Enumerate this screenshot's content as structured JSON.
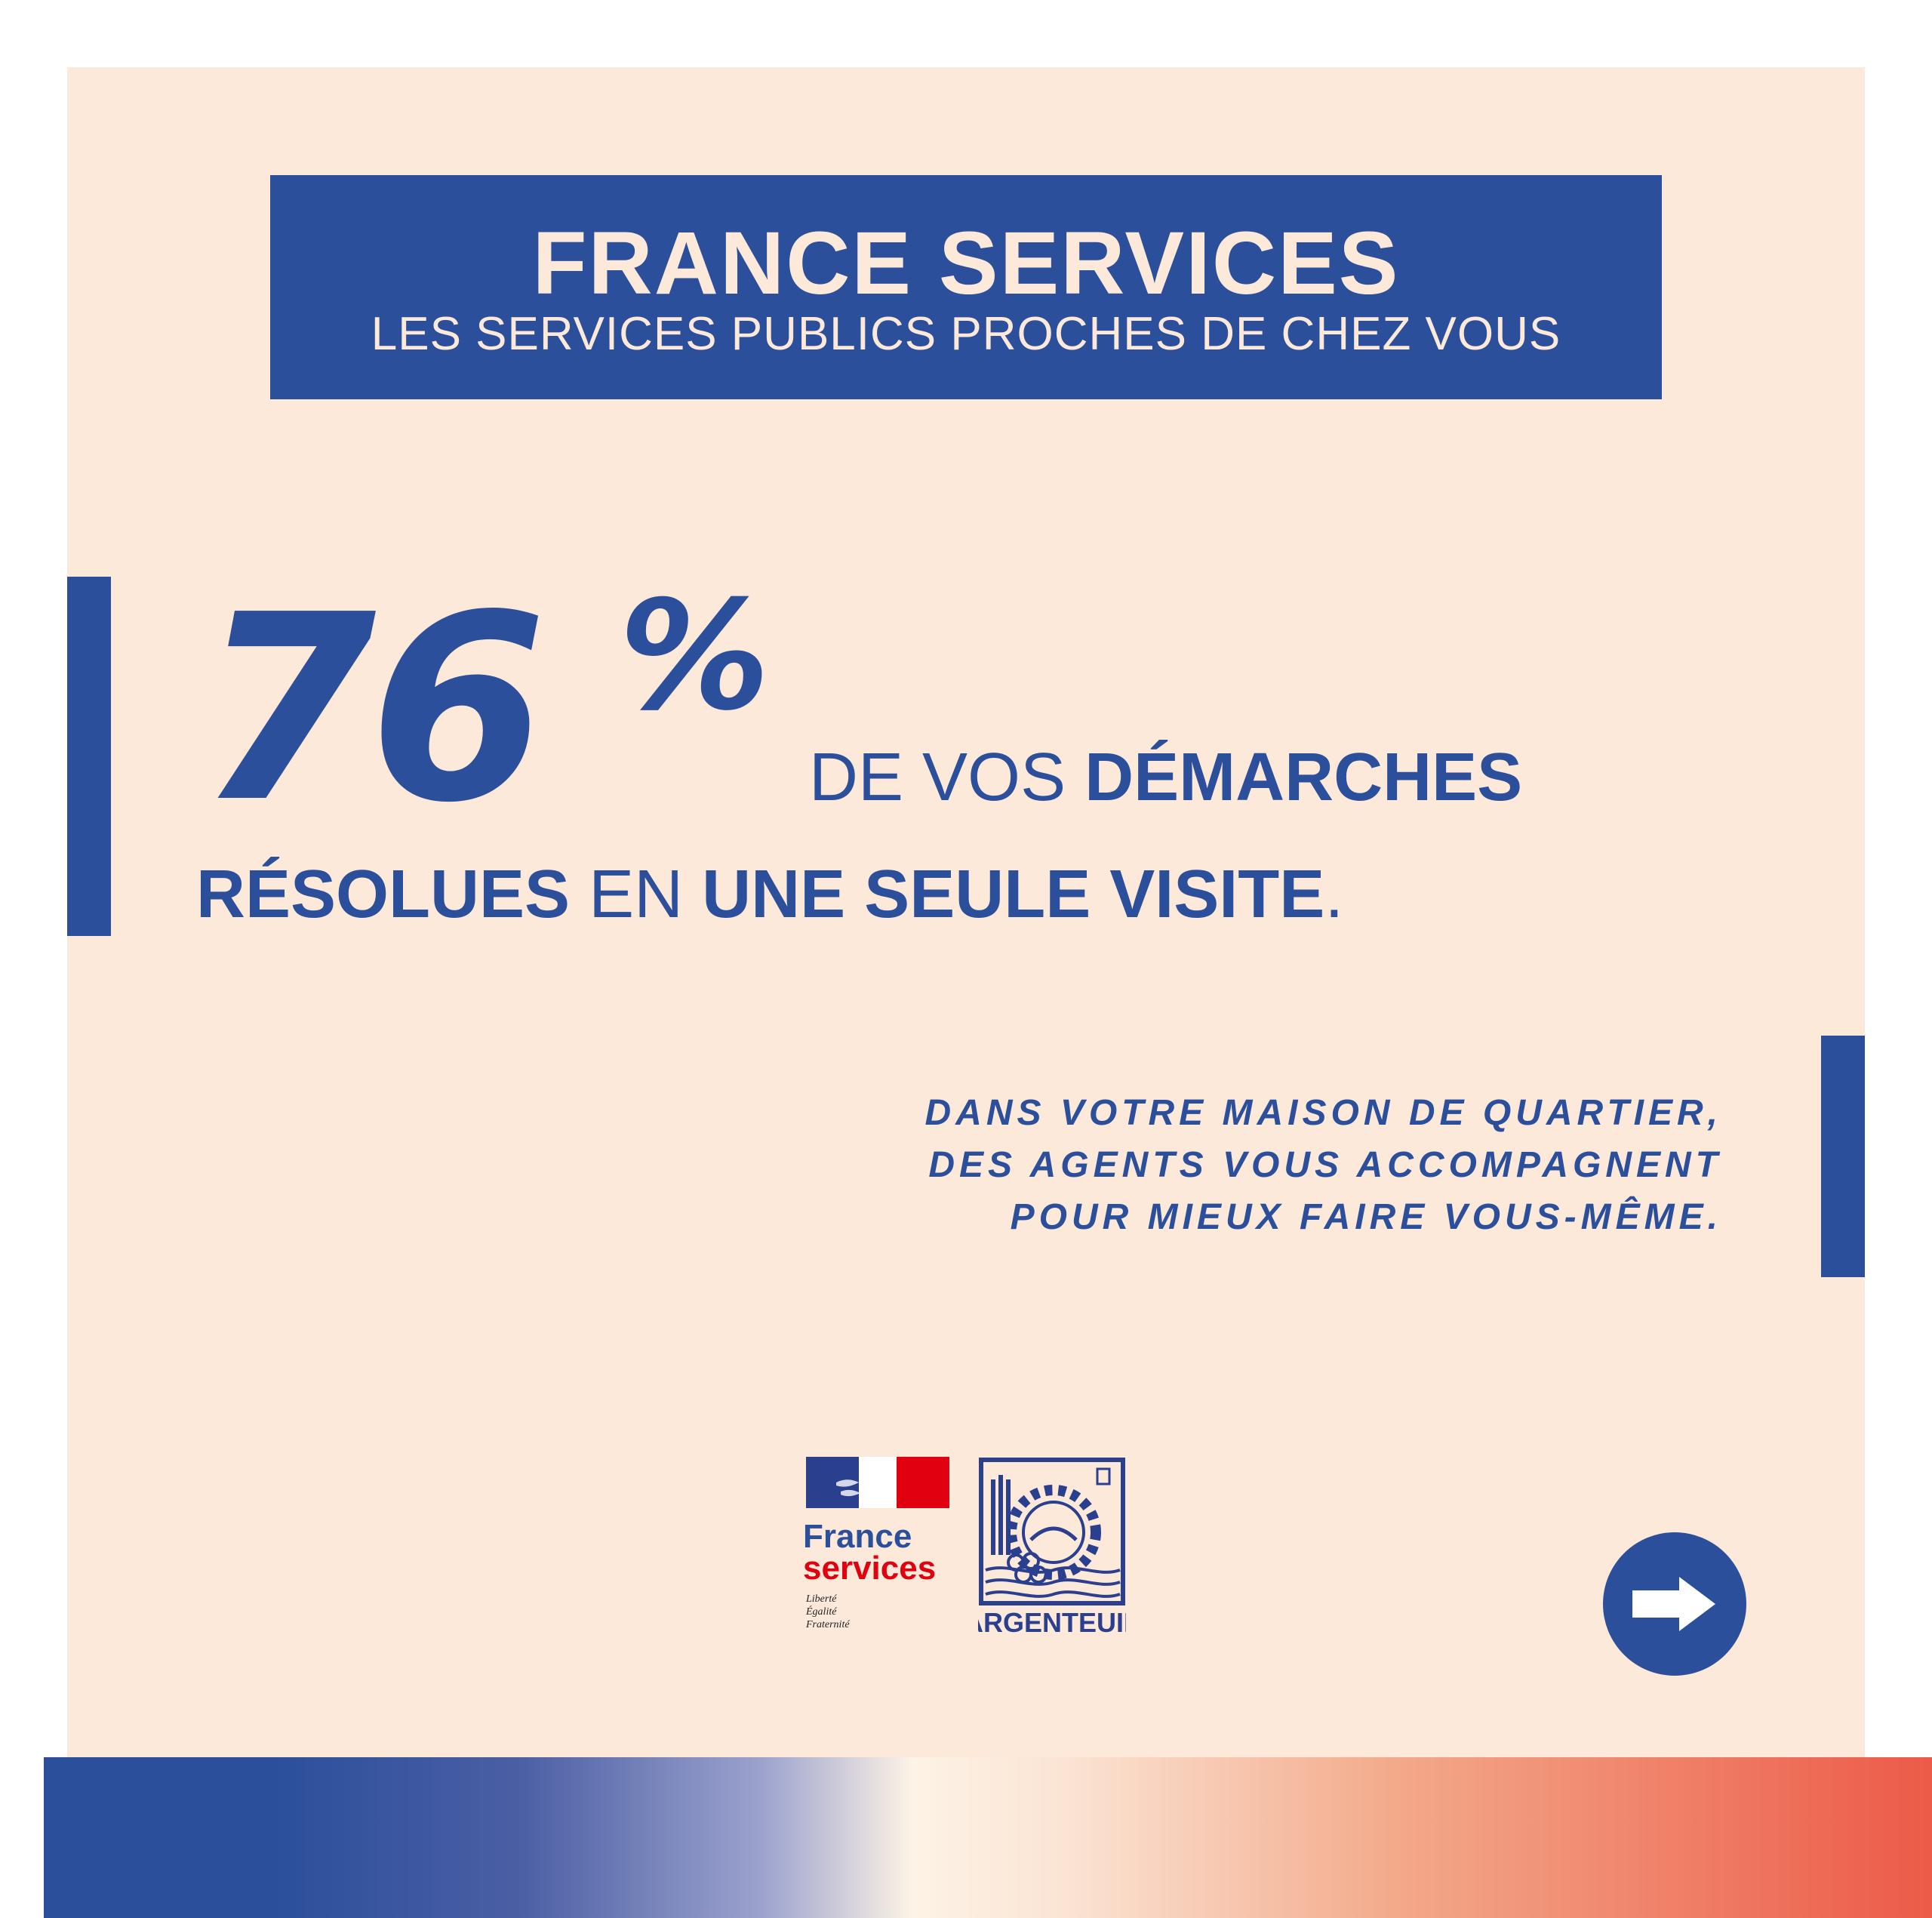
{
  "header": {
    "title": "FRANCE SERVICES",
    "subtitle": "LES SERVICES PUBLICS PROCHES DE CHEZ VOUS"
  },
  "stat": {
    "number": "76",
    "percent_sign": "%",
    "line1_light": "DE VOS ",
    "line1_bold": "DÉMARCHES",
    "line2_bold_a": "RÉSOLUES",
    "line2_light": " EN ",
    "line2_bold_b": "UNE SEULE VISITE",
    "line2_end": "."
  },
  "tagline": [
    "DANS VOTRE MAISON DE QUARTIER,",
    "DES AGENTS VOUS ACCOMPAGNENT",
    "POUR MIEUX FAIRE VOUS-MÊME."
  ],
  "logos": {
    "france_services": {
      "name_line1": "France",
      "name_line2": "services",
      "motto": [
        "Liberté",
        "Égalité",
        "Fraternité"
      ]
    },
    "argenteuil": {
      "name": "ARGENTEUIL"
    }
  },
  "next_button": {
    "icon": "arrow-right-icon"
  },
  "colors": {
    "background": "#fce9da",
    "primary_blue": "#2b4f9b",
    "accent_red": "#e1000f",
    "gradient_end": "#ec5a48"
  }
}
